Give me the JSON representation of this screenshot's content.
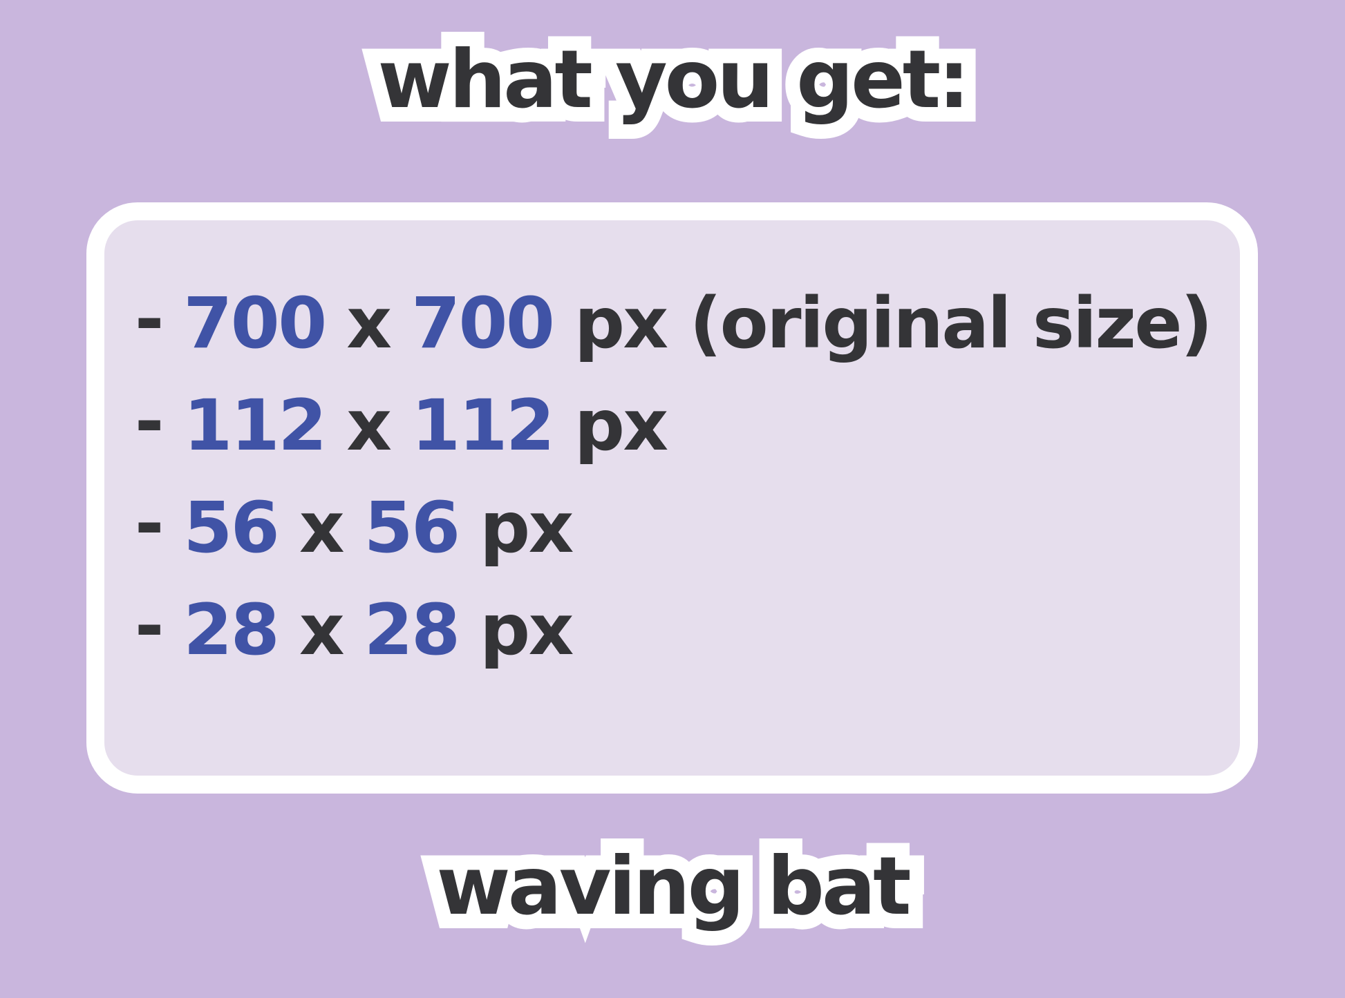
{
  "header": {
    "title": "what you get:"
  },
  "card": {
    "items": [
      {
        "bullet": "-",
        "width": "700",
        "separator": "x",
        "height": "700",
        "unit": "px (original size)"
      },
      {
        "bullet": "-",
        "width": "112",
        "separator": "x",
        "height": "112",
        "unit": "px"
      },
      {
        "bullet": "-",
        "width": "56",
        "separator": "x",
        "height": "56",
        "unit": "px"
      },
      {
        "bullet": "-",
        "width": "28",
        "separator": "x",
        "height": "28",
        "unit": "px"
      }
    ]
  },
  "footer": {
    "product_name": "waving bat"
  },
  "colors": {
    "background": "#C9B6DD",
    "card_background": "#E6DEED",
    "card_border": "#FFFFFF",
    "text_dark": "#343437",
    "accent_blue": "#4053A6",
    "outline_white": "#FFFFFF"
  }
}
